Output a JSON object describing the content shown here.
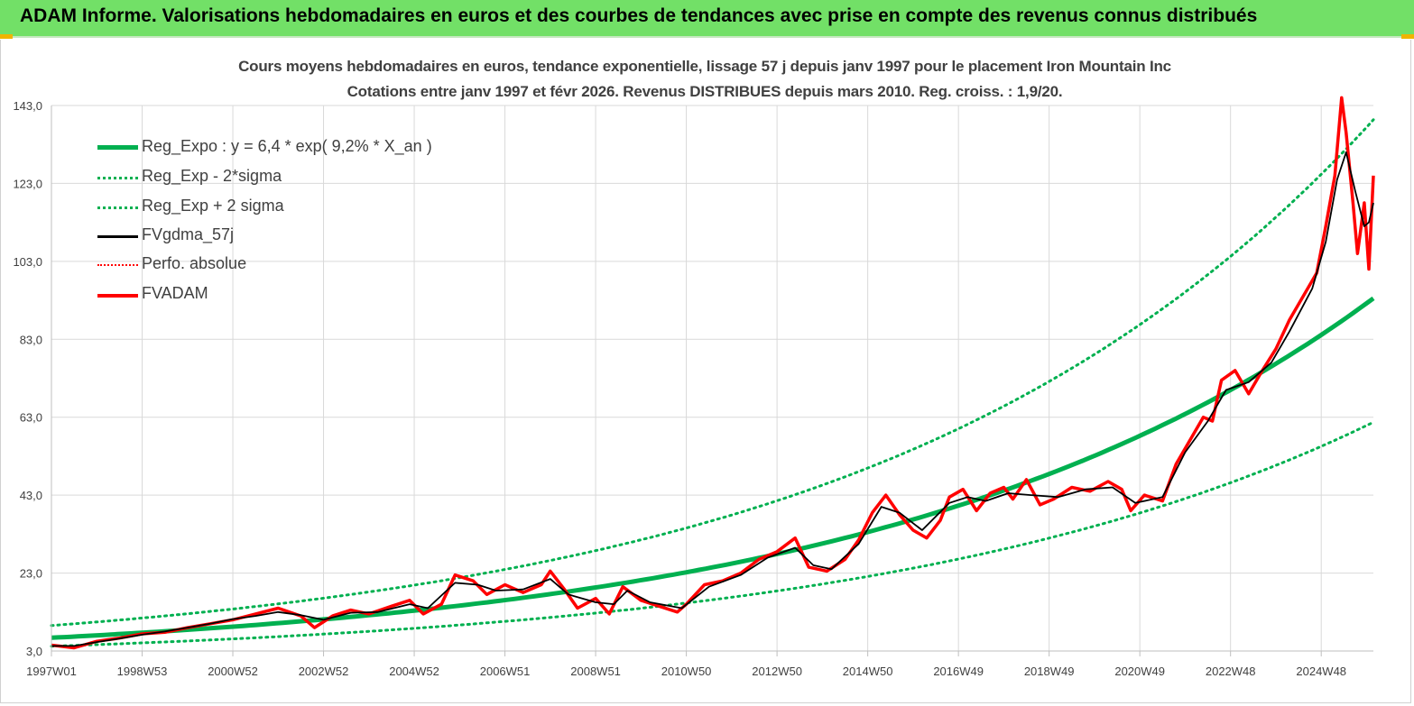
{
  "header": {
    "title": "ADAM Informe. Valorisations hebdomadaires en euros et des courbes de tendances avec prise en compte des revenus connus distribués"
  },
  "colors": {
    "banner": "#72e067",
    "reg": "#00b050",
    "black": "#000000",
    "red": "#ff0000",
    "grid": "#d9d9d9"
  },
  "chart_data": {
    "type": "line",
    "title": "Cours moyens hebdomadaires en euros, tendance exponentielle, lissage 57 j depuis janv 1997 pour le placement Iron Mountain Inc",
    "subtitle": "Cotations entre janv 1997 et févr 2026. Revenus DISTRIBUES depuis mars 2010. Reg. croiss. : 1,9/20.",
    "xlabel": "",
    "ylabel": "",
    "ylim": [
      3,
      143
    ],
    "xlim": [
      1997.0,
      2026.15
    ],
    "yticks": [
      "143,0",
      "123,0",
      "103,0",
      "83,0",
      "63,0",
      "43,0",
      "23,0",
      "3,0"
    ],
    "ytick_values": [
      143,
      123,
      103,
      83,
      63,
      43,
      23,
      3
    ],
    "xticks": [
      "1997W01",
      "1998W53",
      "2000W52",
      "2002W52",
      "2004W52",
      "2006W51",
      "2008W51",
      "2010W50",
      "2012W50",
      "2014W50",
      "2016W49",
      "2018W49",
      "2020W49",
      "2022W48",
      "2024W48"
    ],
    "xtick_years": [
      1997.0,
      1999.0,
      2001.0,
      2003.0,
      2005.0,
      2007.0,
      2009.0,
      2011.0,
      2013.0,
      2015.0,
      2017.0,
      2019.0,
      2021.0,
      2023.0,
      2025.0
    ],
    "legend": [
      {
        "label": "Reg_Expo : y = 6,4 * exp( 9,2% *  X_an )",
        "color": "#00b050",
        "style": "solid-thick"
      },
      {
        "label": "Reg_Exp - 2*sigma",
        "color": "#00b050",
        "style": "dotted"
      },
      {
        "label": "Reg_Exp + 2 sigma",
        "color": "#00b050",
        "style": "dotted"
      },
      {
        "label": "FVgdma_57j",
        "color": "#000000",
        "style": "solid"
      },
      {
        "label": "Perfo. absolue",
        "color": "#ff0000",
        "style": "dotted-thin"
      },
      {
        "label": "FVADAM",
        "color": "#ff0000",
        "style": "solid-thick"
      }
    ],
    "regression": {
      "a": 6.4,
      "rate": 0.092,
      "lower_factor": 0.66,
      "upper_factor": 1.49
    },
    "series": [
      {
        "name": "FVADAM",
        "points": [
          [
            1997.0,
            4.5
          ],
          [
            1997.5,
            3.8
          ],
          [
            1998.0,
            5.5
          ],
          [
            1998.5,
            6.3
          ],
          [
            1999.0,
            7.4
          ],
          [
            1999.5,
            7.8
          ],
          [
            2000.0,
            9.0
          ],
          [
            2000.5,
            10.0
          ],
          [
            2001.0,
            11.0
          ],
          [
            2001.5,
            12.5
          ],
          [
            2002.0,
            14.0
          ],
          [
            2002.5,
            12.0
          ],
          [
            2002.8,
            9.0
          ],
          [
            2003.2,
            12.0
          ],
          [
            2003.6,
            13.5
          ],
          [
            2004.0,
            12.5
          ],
          [
            2004.5,
            14.5
          ],
          [
            2004.9,
            16.0
          ],
          [
            2005.2,
            12.5
          ],
          [
            2005.6,
            15.0
          ],
          [
            2005.9,
            22.5
          ],
          [
            2006.3,
            21.0
          ],
          [
            2006.6,
            17.5
          ],
          [
            2007.0,
            20.0
          ],
          [
            2007.4,
            18.0
          ],
          [
            2007.8,
            20.0
          ],
          [
            2008.0,
            23.5
          ],
          [
            2008.3,
            19.0
          ],
          [
            2008.6,
            14.0
          ],
          [
            2009.0,
            16.5
          ],
          [
            2009.3,
            12.5
          ],
          [
            2009.6,
            19.5
          ],
          [
            2010.0,
            16.0
          ],
          [
            2010.4,
            14.5
          ],
          [
            2010.8,
            13.0
          ],
          [
            2011.0,
            15.0
          ],
          [
            2011.4,
            20.0
          ],
          [
            2011.8,
            21.0
          ],
          [
            2012.2,
            23.0
          ],
          [
            2012.6,
            26.5
          ],
          [
            2013.0,
            28.5
          ],
          [
            2013.4,
            32.0
          ],
          [
            2013.7,
            24.5
          ],
          [
            2014.1,
            23.5
          ],
          [
            2014.5,
            26.5
          ],
          [
            2014.8,
            31.5
          ],
          [
            2015.1,
            38.5
          ],
          [
            2015.4,
            43.0
          ],
          [
            2015.7,
            38.0
          ],
          [
            2016.0,
            34.0
          ],
          [
            2016.3,
            32.0
          ],
          [
            2016.6,
            36.5
          ],
          [
            2016.8,
            42.5
          ],
          [
            2017.1,
            44.5
          ],
          [
            2017.4,
            39.0
          ],
          [
            2017.7,
            43.5
          ],
          [
            2018.0,
            45.0
          ],
          [
            2018.2,
            42.0
          ],
          [
            2018.5,
            47.0
          ],
          [
            2018.8,
            40.5
          ],
          [
            2019.1,
            42.0
          ],
          [
            2019.5,
            45.0
          ],
          [
            2019.9,
            44.0
          ],
          [
            2020.3,
            46.5
          ],
          [
            2020.6,
            44.5
          ],
          [
            2020.8,
            39.0
          ],
          [
            2021.1,
            43.0
          ],
          [
            2021.5,
            41.5
          ],
          [
            2021.8,
            51.0
          ],
          [
            2022.1,
            57.0
          ],
          [
            2022.4,
            63.0
          ],
          [
            2022.6,
            62.0
          ],
          [
            2022.8,
            72.5
          ],
          [
            2023.1,
            75.0
          ],
          [
            2023.4,
            69.0
          ],
          [
            2023.7,
            75.0
          ],
          [
            2024.0,
            80.5
          ],
          [
            2024.3,
            88.0
          ],
          [
            2024.6,
            94.0
          ],
          [
            2024.9,
            100.0
          ],
          [
            2025.1,
            112.0
          ],
          [
            2025.3,
            125.0
          ],
          [
            2025.45,
            145.0
          ],
          [
            2025.55,
            136.0
          ],
          [
            2025.7,
            118.0
          ],
          [
            2025.8,
            105.0
          ],
          [
            2025.95,
            118.0
          ],
          [
            2026.05,
            101.0
          ],
          [
            2026.15,
            125.0
          ]
        ]
      },
      {
        "name": "FVgdma_57j",
        "points": [
          [
            1997.0,
            4.3
          ],
          [
            1997.5,
            4.3
          ],
          [
            1998.0,
            5.3
          ],
          [
            1998.5,
            6.2
          ],
          [
            1999.0,
            7.2
          ],
          [
            1999.5,
            8.0
          ],
          [
            2000.0,
            9.0
          ],
          [
            2000.5,
            10.0
          ],
          [
            2001.0,
            11.2
          ],
          [
            2001.5,
            12.0
          ],
          [
            2002.0,
            13.0
          ],
          [
            2002.5,
            12.2
          ],
          [
            2003.0,
            11.0
          ],
          [
            2003.6,
            12.8
          ],
          [
            2004.2,
            13.0
          ],
          [
            2004.9,
            15.0
          ],
          [
            2005.3,
            14.0
          ],
          [
            2005.9,
            20.5
          ],
          [
            2006.4,
            20.0
          ],
          [
            2006.8,
            18.5
          ],
          [
            2007.4,
            18.8
          ],
          [
            2008.0,
            21.5
          ],
          [
            2008.4,
            17.5
          ],
          [
            2009.0,
            15.5
          ],
          [
            2009.4,
            15.0
          ],
          [
            2009.7,
            18.5
          ],
          [
            2010.2,
            15.5
          ],
          [
            2010.9,
            14.0
          ],
          [
            2011.5,
            19.5
          ],
          [
            2012.2,
            22.5
          ],
          [
            2012.8,
            27.0
          ],
          [
            2013.4,
            29.5
          ],
          [
            2013.8,
            25.0
          ],
          [
            2014.2,
            24.0
          ],
          [
            2014.8,
            30.5
          ],
          [
            2015.3,
            40.0
          ],
          [
            2015.7,
            38.5
          ],
          [
            2016.2,
            34.0
          ],
          [
            2016.8,
            41.0
          ],
          [
            2017.2,
            42.5
          ],
          [
            2017.6,
            41.5
          ],
          [
            2018.1,
            43.5
          ],
          [
            2018.6,
            43.0
          ],
          [
            2019.2,
            42.5
          ],
          [
            2019.8,
            44.5
          ],
          [
            2020.4,
            45.0
          ],
          [
            2020.9,
            41.0
          ],
          [
            2021.5,
            42.5
          ],
          [
            2022.0,
            54.0
          ],
          [
            2022.5,
            62.0
          ],
          [
            2022.9,
            70.0
          ],
          [
            2023.4,
            72.0
          ],
          [
            2023.9,
            77.0
          ],
          [
            2024.3,
            85.0
          ],
          [
            2024.8,
            96.0
          ],
          [
            2025.1,
            108.0
          ],
          [
            2025.35,
            124.0
          ],
          [
            2025.55,
            131.0
          ],
          [
            2025.75,
            121.0
          ],
          [
            2025.95,
            112.0
          ],
          [
            2026.05,
            113.0
          ],
          [
            2026.15,
            118.0
          ]
        ]
      }
    ]
  }
}
